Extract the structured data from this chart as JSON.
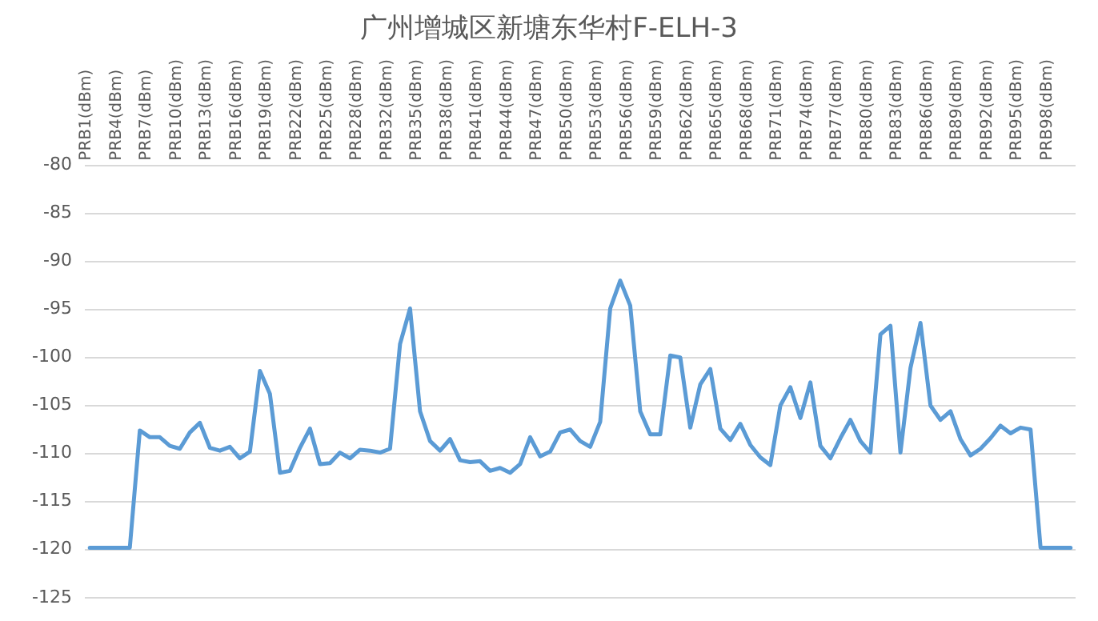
{
  "chart_data": {
    "type": "line",
    "title": "广州增城区新塘东华村F-ELH-3",
    "categories": [
      "PRB1(dBm)",
      null,
      null,
      "PRB4(dBm)",
      null,
      null,
      "PRB7(dBm)",
      null,
      null,
      "PRB10(dBm)",
      null,
      null,
      "PRB13(dBm)",
      null,
      null,
      "PRB16(dBm)",
      null,
      null,
      "PRB19(dBm)",
      null,
      null,
      "PRB22(dBm)",
      null,
      null,
      "PRB25(dBm)",
      null,
      null,
      "PRB28(dBm)",
      null,
      null,
      "PRB32(dBm)",
      null,
      null,
      "PRB35(dBm)",
      null,
      null,
      "PRB38(dBm)",
      null,
      null,
      "PRB41(dBm)",
      null,
      null,
      "PRB44(dBm)",
      null,
      null,
      "PRB47(dBm)",
      null,
      null,
      "PRB50(dBm)",
      null,
      null,
      "PRB53(dBm)",
      null,
      null,
      "PRB56(dBm)",
      null,
      null,
      "PRB59(dBm)",
      null,
      null,
      "PRB62(dBm)",
      null,
      null,
      "PRB65(dBm)",
      null,
      null,
      "PRB68(dBm)",
      null,
      null,
      "PRB71(dBm)",
      null,
      null,
      "PRB74(dBm)",
      null,
      null,
      "PRB77(dBm)",
      null,
      null,
      "PRB80(dBm)",
      null,
      null,
      "PRB83(dBm)",
      null,
      null,
      "PRB86(dBm)",
      null,
      null,
      "PRB89(dBm)",
      null,
      null,
      "PRB92(dBm)",
      null,
      null,
      "PRB95(dBm)",
      null,
      null,
      "PRB98(dBm)",
      null,
      null
    ],
    "series": [
      {
        "color": "#5b9bd5",
        "values": [
          -119.8,
          -119.8,
          -119.8,
          -119.8,
          -119.8,
          -107.6,
          -108.3,
          -108.3,
          -109.2,
          -109.5,
          -107.8,
          -106.8,
          -109.4,
          -109.7,
          -109.3,
          -110.5,
          -109.8,
          -101.4,
          -103.8,
          -112,
          -111.8,
          -109.4,
          -107.4,
          -111.1,
          -111,
          -109.9,
          -110.5,
          -109.6,
          -109.7,
          -109.9,
          -109.5,
          -98.6,
          -94.9,
          -105.6,
          -108.7,
          -109.7,
          -108.5,
          -110.7,
          -110.9,
          -110.8,
          -111.8,
          -111.5,
          -112,
          -111.1,
          -108.3,
          -110.3,
          -109.8,
          -107.8,
          -107.5,
          -108.7,
          -109.3,
          -106.7,
          -94.9,
          -92,
          -94.6,
          -105.6,
          -108,
          -108,
          -99.8,
          -100,
          -107.3,
          -102.8,
          -101.2,
          -107.4,
          -108.6,
          -106.9,
          -109.1,
          -110.4,
          -111.2,
          -105,
          -103.1,
          -106.3,
          -102.6,
          -109.2,
          -110.5,
          -108.4,
          -106.5,
          -108.7,
          -109.9,
          -97.6,
          -96.7,
          -109.9,
          -101.1,
          -96.4,
          -105,
          -106.5,
          -105.6,
          -108.5,
          -110.2,
          -109.5,
          -108.4,
          -107.1,
          -107.9,
          -107.3,
          -107.5,
          -119.8,
          -119.8,
          -119.8,
          -119.8
        ]
      }
    ],
    "ylim": [
      -125,
      -80
    ],
    "yticks": [
      -125,
      -120,
      -115,
      -110,
      -105,
      -100,
      -95,
      -90,
      -85,
      -80
    ],
    "grid": "y",
    "legend": false,
    "marker": "none",
    "line_style": "solid"
  }
}
